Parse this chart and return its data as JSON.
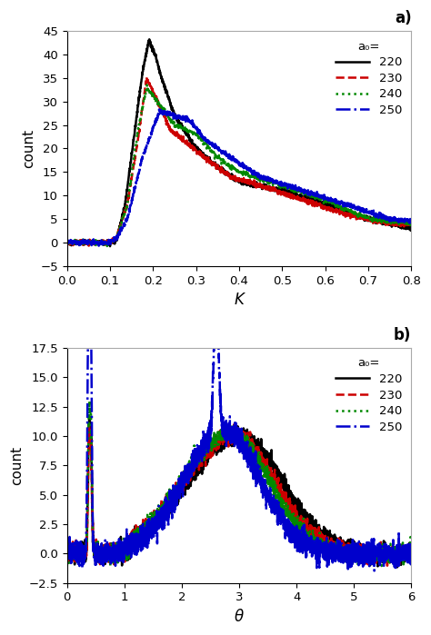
{
  "title_a": "a)",
  "title_b": "b)",
  "xlabel_a": "K",
  "xlabel_b": "θ",
  "ylabel": "count",
  "legend_title": "a₀=",
  "legend_labels": [
    "220",
    "230",
    "240",
    "250"
  ],
  "colors": [
    "#000000",
    "#cc0000",
    "#008800",
    "#0000cc"
  ],
  "linestyles": [
    "-",
    "--",
    ":",
    "-."
  ],
  "linewidths": [
    1.8,
    1.8,
    1.8,
    1.8
  ],
  "plot_a": {
    "xlim": [
      0.0,
      0.8
    ],
    "ylim": [
      -5,
      45
    ],
    "yticks": [
      -5,
      0,
      5,
      10,
      15,
      20,
      25,
      30,
      35,
      40,
      45
    ],
    "xticks": [
      0.0,
      0.1,
      0.2,
      0.3,
      0.4,
      0.5,
      0.6,
      0.7,
      0.8
    ]
  },
  "plot_b": {
    "xlim": [
      0.0,
      6.0
    ],
    "ylim": [
      -2.5,
      17.5
    ],
    "yticks": [
      -2.5,
      0.0,
      2.5,
      5.0,
      7.5,
      10.0,
      12.5,
      15.0,
      17.5
    ],
    "xticks": [
      0,
      1,
      2,
      3,
      4,
      5,
      6
    ]
  },
  "bg_color": "#f0f0f0",
  "figsize": [
    4.74,
    6.99
  ],
  "dpi": 100
}
